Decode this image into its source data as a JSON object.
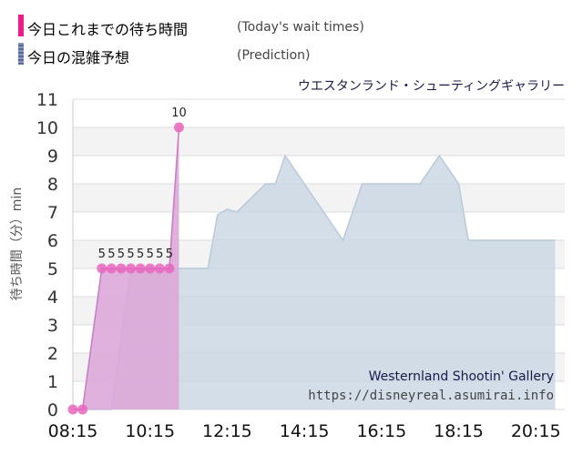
{
  "legend": {
    "today_label": "今日これまでの待ち時間",
    "today_sub": "(Today's wait times)",
    "today_color": "#ee1c8a",
    "prediction_label": "今日の混雑予想",
    "prediction_sub": "(Prediction)",
    "prediction_color": "#5a6a9a"
  },
  "attraction_title": "ウエスタンランド・シューティングギャラリー",
  "attraction_name_en": "Westernland Shootin' Gallery",
  "credit": "https://disneyreal.asumirai.info",
  "chart_data": {
    "type": "area",
    "ylabel": "待ち時間（分）min",
    "ylim": [
      0,
      11
    ],
    "yticks": [
      0,
      1,
      2,
      3,
      4,
      5,
      6,
      7,
      8,
      9,
      10,
      11
    ],
    "xlim": [
      "08:15",
      "21:00"
    ],
    "xticks": [
      "08:15",
      "10:15",
      "12:15",
      "14:15",
      "16:15",
      "18:15",
      "20:15"
    ],
    "grid": true,
    "series": [
      {
        "key": "prediction",
        "name": "今日の混雑予想",
        "color": "#c9d6e3",
        "line_color": "#b9c9d8",
        "points": [
          [
            "08:15",
            0
          ],
          [
            "09:15",
            0
          ],
          [
            "09:45",
            5
          ],
          [
            "11:45",
            5
          ],
          [
            "12:00",
            6.9
          ],
          [
            "12:15",
            7.1
          ],
          [
            "12:30",
            7
          ],
          [
            "13:15",
            8
          ],
          [
            "13:30",
            8
          ],
          [
            "13:45",
            9
          ],
          [
            "14:15",
            8
          ],
          [
            "15:00",
            6.5
          ],
          [
            "15:15",
            6
          ],
          [
            "15:45",
            8
          ],
          [
            "16:15",
            8
          ],
          [
            "17:15",
            8
          ],
          [
            "17:45",
            9
          ],
          [
            "18:15",
            8
          ],
          [
            "18:30",
            6
          ],
          [
            "20:15",
            6
          ],
          [
            "20:45",
            6
          ]
        ]
      },
      {
        "key": "today",
        "name": "今日これまでの待ち時間",
        "color": "#dba8d8",
        "line_color": "#c77bc7",
        "marker_color": "#e766bd",
        "show_data_labels_from": 2,
        "points": [
          [
            "08:15",
            0
          ],
          [
            "08:30",
            0
          ],
          [
            "09:00",
            5
          ],
          [
            "09:15",
            5
          ],
          [
            "09:30",
            5
          ],
          [
            "09:45",
            5
          ],
          [
            "10:00",
            5
          ],
          [
            "10:15",
            5
          ],
          [
            "10:30",
            5
          ],
          [
            "10:45",
            5
          ],
          [
            "11:00",
            10
          ]
        ]
      }
    ]
  }
}
